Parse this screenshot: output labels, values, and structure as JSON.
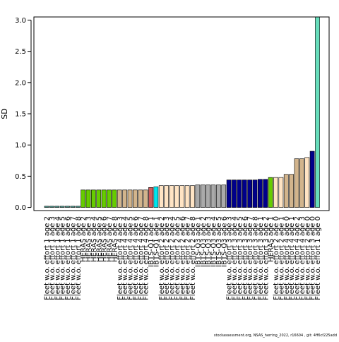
{
  "chart_data": {
    "type": "bar",
    "ylabel": "SD",
    "xlabel": "",
    "title": "",
    "ylim": [
      -0.05,
      3.05
    ],
    "yticks": [
      0.0,
      0.5,
      1.0,
      1.5,
      2.0,
      2.5,
      3.0
    ],
    "ytick_labels": [
      "0.0",
      "0.5",
      "1.0",
      "1.5",
      "2.0",
      "2.5",
      "3.0"
    ],
    "grid": false,
    "legend": "none",
    "categories": [
      "Fleet w.o. effort 1 age 2",
      "Fleet w.o. effort 1 age 3",
      "Fleet w.o. effort 1 age 4",
      "Fleet w.o. effort 1 age 5",
      "Fleet w.o. effort 1 age 6",
      "Fleet w.o. effort 1 age 7",
      "Fleet w.o. effort 1 age 8",
      "HERAS age 2",
      "HERAS age 3",
      "HERAS age 4",
      "HERAS age 5",
      "HERAS age 6",
      "HERAS age 7",
      "HERAS age 8",
      "Fleet w.o. effort 4 age 3",
      "Fleet w.o. effort 4 age 4",
      "Fleet w.o. effort 4 age 5",
      "Fleet w.o. effort 4 age 6",
      "Fleet w.o. effort 4 age 7",
      "Fleet w.o. effort 4 age 8",
      "IBTS-Q1 age 1",
      "IBTS-Q1 age 1",
      "Fleet w.o. effort 2 age 2",
      "Fleet w.o. effort 2 age 3",
      "Fleet w.o. effort 2 age 4",
      "Fleet w.o. effort 2 age 5",
      "Fleet w.o. effort 2 age 6",
      "Fleet w.o. effort 2 age 7",
      "Fleet w.o. effort 2 age 8",
      "IBTS-Q3 age 1",
      "IBTS-Q3 age 2",
      "IBTS-Q3 age 3",
      "IBTS-Q3 age 4",
      "IBTS-Q3 age 5",
      "IBTS-Q3 age 6",
      "Fleet w.o. effort 3 age 3",
      "Fleet w.o. effort 3 age 4",
      "Fleet w.o. effort 3 age 5",
      "Fleet w.o. effort 3 age 6",
      "Fleet w.o. effort 3 age 7",
      "Fleet w.o. effort 3 age 8",
      "Fleet w.o. effort 3 age 1",
      "Fleet w.o. effort 3 age 2",
      "HERAS age 1",
      "Fleet w.o. effort 2 age 0",
      "Fleet w.o. effort 2 age 1",
      "Fleet w.o. effort 4 age 0",
      "Fleet w.o. effort 4 age 1",
      "Fleet w.o. effort 4 age 2",
      "Fleet w.o. effort 4 age 3",
      "Fleet w.o. effort 2 age 0",
      "Fleet w.o. effort 3 age 0",
      "Fleet w.o. effort 1 age 0"
    ],
    "values": [
      0.02,
      0.02,
      0.02,
      0.02,
      0.02,
      0.02,
      0.02,
      0.28,
      0.28,
      0.28,
      0.28,
      0.28,
      0.28,
      0.28,
      0.28,
      0.28,
      0.28,
      0.28,
      0.28,
      0.28,
      0.32,
      0.33,
      0.35,
      0.35,
      0.35,
      0.35,
      0.35,
      0.35,
      0.35,
      0.36,
      0.36,
      0.36,
      0.36,
      0.36,
      0.36,
      0.44,
      0.44,
      0.44,
      0.44,
      0.44,
      0.44,
      0.45,
      0.45,
      0.48,
      0.48,
      0.48,
      0.53,
      0.53,
      0.78,
      0.78,
      0.8,
      0.9,
      3.05
    ],
    "colors": [
      "#4a9b8f",
      "#4a9b8f",
      "#4a9b8f",
      "#4a9b8f",
      "#4a9b8f",
      "#4a9b8f",
      "#4a9b8f",
      "#66cc00",
      "#66cc00",
      "#66cc00",
      "#66cc00",
      "#66cc00",
      "#66cc00",
      "#66cc00",
      "#d2b48c",
      "#d2b48c",
      "#d2b48c",
      "#d2b48c",
      "#d2b48c",
      "#d2b48c",
      "#cd5c5c",
      "#00e5ee",
      "#ffe4c4",
      "#ffe4c4",
      "#ffe4c4",
      "#ffe4c4",
      "#ffe4c4",
      "#ffe4c4",
      "#ffe4c4",
      "#aaaaaa",
      "#aaaaaa",
      "#aaaaaa",
      "#aaaaaa",
      "#aaaaaa",
      "#aaaaaa",
      "#00008b",
      "#00008b",
      "#00008b",
      "#00008b",
      "#00008b",
      "#00008b",
      "#00008b",
      "#00008b",
      "#66cc00",
      "#ffe4c4",
      "#ffe4c4",
      "#d2b48c",
      "#d2b48c",
      "#d2b48c",
      "#d2b48c",
      "#ffe4c4",
      "#00008b",
      "#66ddbb"
    ]
  },
  "footer": "stockassessment.org, NSAS_herring_2022, r16604 , git: 4ff6cf225add"
}
